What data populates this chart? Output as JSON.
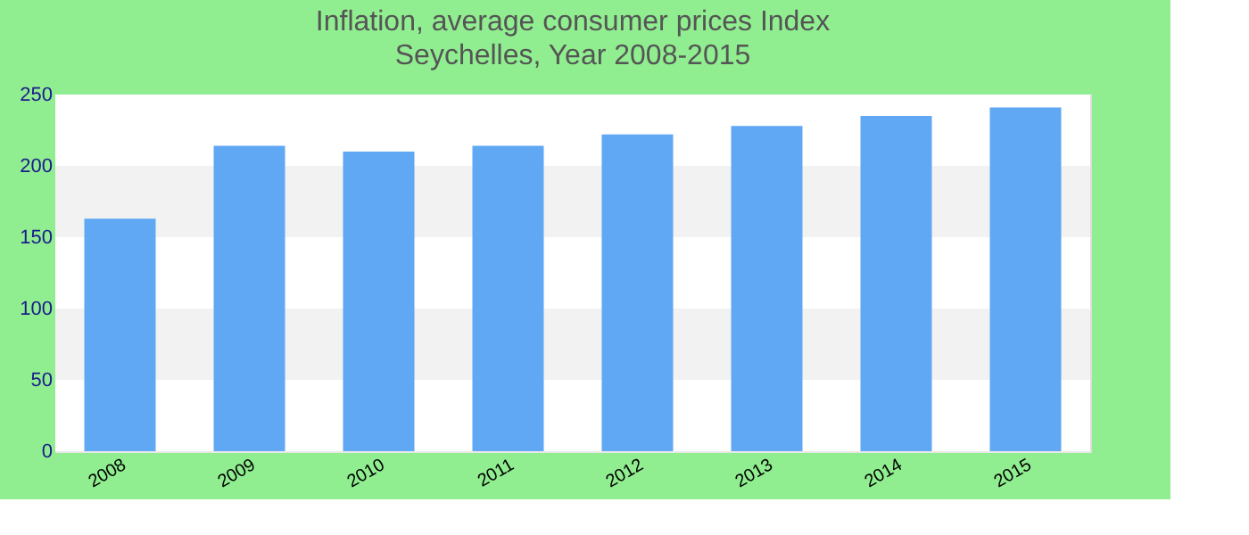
{
  "chart_data": {
    "type": "bar",
    "title": "Inflation, average consumer prices  Index",
    "subtitle": "Seychelles, Year 2008-2015",
    "categories": [
      "2008",
      "2009",
      "2010",
      "2011",
      "2012",
      "2013",
      "2014",
      "2015"
    ],
    "values": [
      163,
      214,
      210,
      214,
      222,
      228,
      235,
      241
    ],
    "color": "#60a8f4",
    "ylim": [
      0,
      250
    ],
    "yticks": [
      0,
      50,
      100,
      150,
      200,
      250
    ],
    "grid": true
  }
}
